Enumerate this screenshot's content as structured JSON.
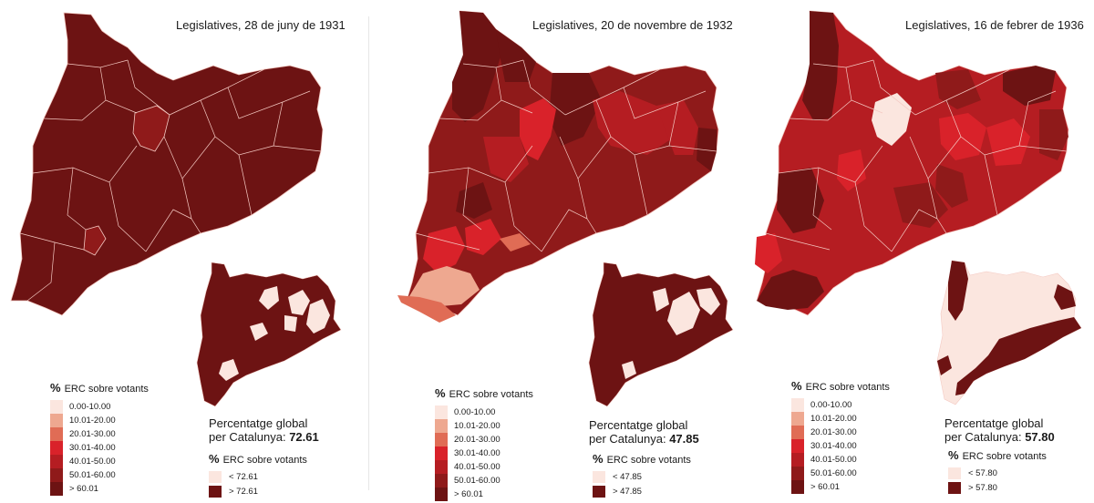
{
  "colors": {
    "c0": "#fbe6df",
    "c1": "#eea890",
    "c2": "#e06c55",
    "c3": "#d9222a",
    "c4": "#b51d22",
    "c5": "#8f1a1a",
    "c6": "#6d1313",
    "low": "#fbe6df",
    "high": "#6d1313",
    "border": "#f4c9c2"
  },
  "legend_classes": [
    "0.00-10.00",
    "10.01-20.00",
    "20.01-30.00",
    "30.01-40.00",
    "40.01-50.00",
    "50.01-60.00",
    "> 60.01"
  ],
  "panels": [
    {
      "title": "Legislatives, 28 de juny de 1931",
      "legend_title_pct": "%",
      "legend_title_text": "ERC sobre votants",
      "global_line1": "Percentatge global",
      "global_line2": "per Catalunya:",
      "global_value": "72.61",
      "binary_title_pct": "%",
      "binary_title_text": "ERC sobre votants",
      "binary_low": "< 72.61",
      "binary_high": "> 72.61"
    },
    {
      "title": "Legislatives, 20 de novembre de 1932",
      "legend_title_pct": "%",
      "legend_title_text": "ERC sobre votants",
      "global_line1": "Percentatge global",
      "global_line2": "per Catalunya:",
      "global_value": "47.85",
      "binary_title_pct": "%",
      "binary_title_text": "ERC sobre votants",
      "binary_low": "< 47.85",
      "binary_high": "> 47.85"
    },
    {
      "title": "Legislatives, 16 de febrer de 1936",
      "legend_title_pct": "%",
      "legend_title_text": "ERC sobre votants",
      "global_line1": "Percentatge global",
      "global_line2": "per Catalunya:",
      "global_value": "57.80",
      "binary_title_pct": "%",
      "binary_title_text": "ERC sobre votants",
      "binary_low": "< 57.80",
      "binary_high": "> 57.80"
    }
  ]
}
